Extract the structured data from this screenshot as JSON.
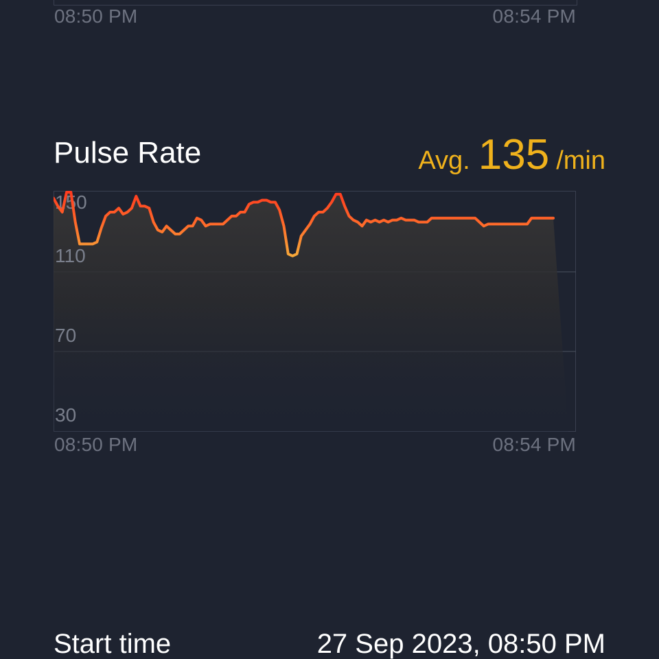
{
  "previous_chart": {
    "x_start_label": "08:50 PM",
    "x_end_label": "08:54 PM"
  },
  "pulse_rate": {
    "title": "Pulse Rate",
    "avg_label": "Avg.",
    "avg_value": "135",
    "avg_unit": "/min"
  },
  "colors": {
    "background": "#1e2330",
    "accent": "#f0b21c",
    "line_high": "#ff3b1f",
    "line_mid": "#ff6a2a",
    "line_low": "#f7a93a"
  },
  "chart_data": {
    "type": "area",
    "ylim": [
      30,
      150
    ],
    "yticks": [
      150,
      110,
      70,
      30
    ],
    "x_labels": [
      "08:50 PM",
      "08:54 PM"
    ],
    "grid": true,
    "series": [
      {
        "values": [
          147,
          143,
          140,
          150,
          150,
          135,
          124,
          124,
          124,
          124,
          125,
          132,
          138,
          140,
          140,
          142,
          139,
          140,
          142,
          148,
          143,
          143,
          142,
          135,
          131,
          130,
          133,
          131,
          129,
          129,
          131,
          133,
          133,
          137,
          136,
          133,
          134,
          134,
          134,
          134,
          136,
          138,
          138,
          140,
          140,
          144,
          145,
          145,
          146,
          146,
          145,
          145,
          141,
          133,
          119,
          118,
          119,
          128,
          131,
          134,
          138,
          140,
          140,
          142,
          145,
          149,
          149,
          143,
          138,
          136,
          135,
          133,
          136,
          135,
          136,
          135,
          136,
          135,
          136,
          136,
          137,
          136,
          136,
          136,
          135,
          135,
          135,
          137,
          137,
          137,
          137,
          137,
          137,
          137,
          137,
          137,
          137,
          137,
          135,
          133,
          134,
          134,
          134,
          134,
          134,
          134,
          134,
          134,
          134,
          134,
          137,
          137,
          137,
          137,
          137,
          137
        ]
      }
    ]
  },
  "start_time": {
    "label": "Start time",
    "value": "27 Sep 2023, 08:50 PM"
  }
}
